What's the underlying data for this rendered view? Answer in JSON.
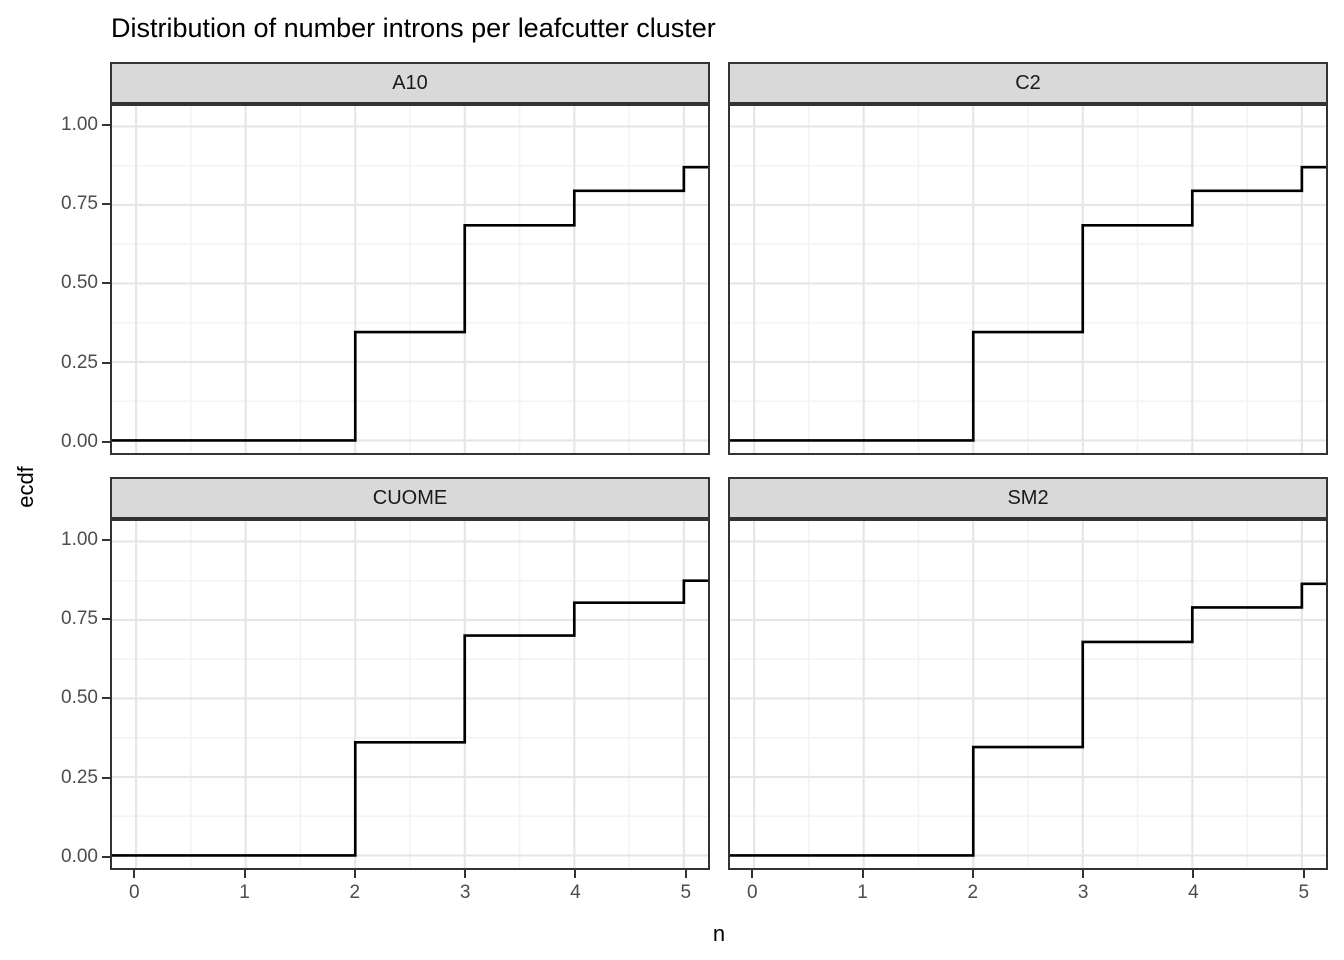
{
  "chart_data": {
    "type": "step",
    "title": "Distribution of number introns per leafcutter cluster",
    "xlabel": "n",
    "ylabel": "ecdf",
    "xlim": [
      -0.22,
      5.22
    ],
    "ylim": [
      -0.04,
      1.065
    ],
    "x_ticks": {
      "values": [
        0,
        1,
        2,
        3,
        4,
        5
      ],
      "labels": [
        "0",
        "1",
        "2",
        "3",
        "4",
        "5"
      ]
    },
    "y_ticks": {
      "values": [
        0,
        0.25,
        0.5,
        0.75,
        1
      ],
      "labels": [
        "0.00",
        "0.25",
        "0.50",
        "0.75",
        "1.00"
      ]
    },
    "grid": {
      "major_x": [
        0,
        1,
        2,
        3,
        4,
        5
      ],
      "minor_x": [
        0.5,
        1.5,
        2.5,
        3.5,
        4.5
      ],
      "major_y": [
        0,
        0.25,
        0.5,
        0.75,
        1
      ],
      "minor_y": [
        0.125,
        0.375,
        0.625,
        0.875
      ]
    },
    "legend": "none",
    "facets": [
      {
        "label": "A10",
        "ecdf_start": 0,
        "steps": [
          {
            "n": 2,
            "ecdf": 0.345
          },
          {
            "n": 3,
            "ecdf": 0.685
          },
          {
            "n": 4,
            "ecdf": 0.795
          },
          {
            "n": 5,
            "ecdf": 0.87
          }
        ]
      },
      {
        "label": "C2",
        "ecdf_start": 0,
        "steps": [
          {
            "n": 2,
            "ecdf": 0.345
          },
          {
            "n": 3,
            "ecdf": 0.685
          },
          {
            "n": 4,
            "ecdf": 0.795
          },
          {
            "n": 5,
            "ecdf": 0.87
          }
        ]
      },
      {
        "label": "CUOME",
        "ecdf_start": 0,
        "steps": [
          {
            "n": 2,
            "ecdf": 0.36
          },
          {
            "n": 3,
            "ecdf": 0.7
          },
          {
            "n": 4,
            "ecdf": 0.805
          },
          {
            "n": 5,
            "ecdf": 0.875
          }
        ]
      },
      {
        "label": "SM2",
        "ecdf_start": 0,
        "steps": [
          {
            "n": 2,
            "ecdf": 0.345
          },
          {
            "n": 3,
            "ecdf": 0.68
          },
          {
            "n": 4,
            "ecdf": 0.79
          },
          {
            "n": 5,
            "ecdf": 0.865
          }
        ]
      }
    ]
  },
  "colors": {
    "background": "#ffffff",
    "strip_fill": "#d9d9d9",
    "panel_border": "#333333",
    "grid_major": "#e6e6e6",
    "grid_minor": "#f3f3f3",
    "line": "#000000",
    "tick_label": "#4d4d4d",
    "text": "#000000",
    "tick_mark": "#333333"
  }
}
